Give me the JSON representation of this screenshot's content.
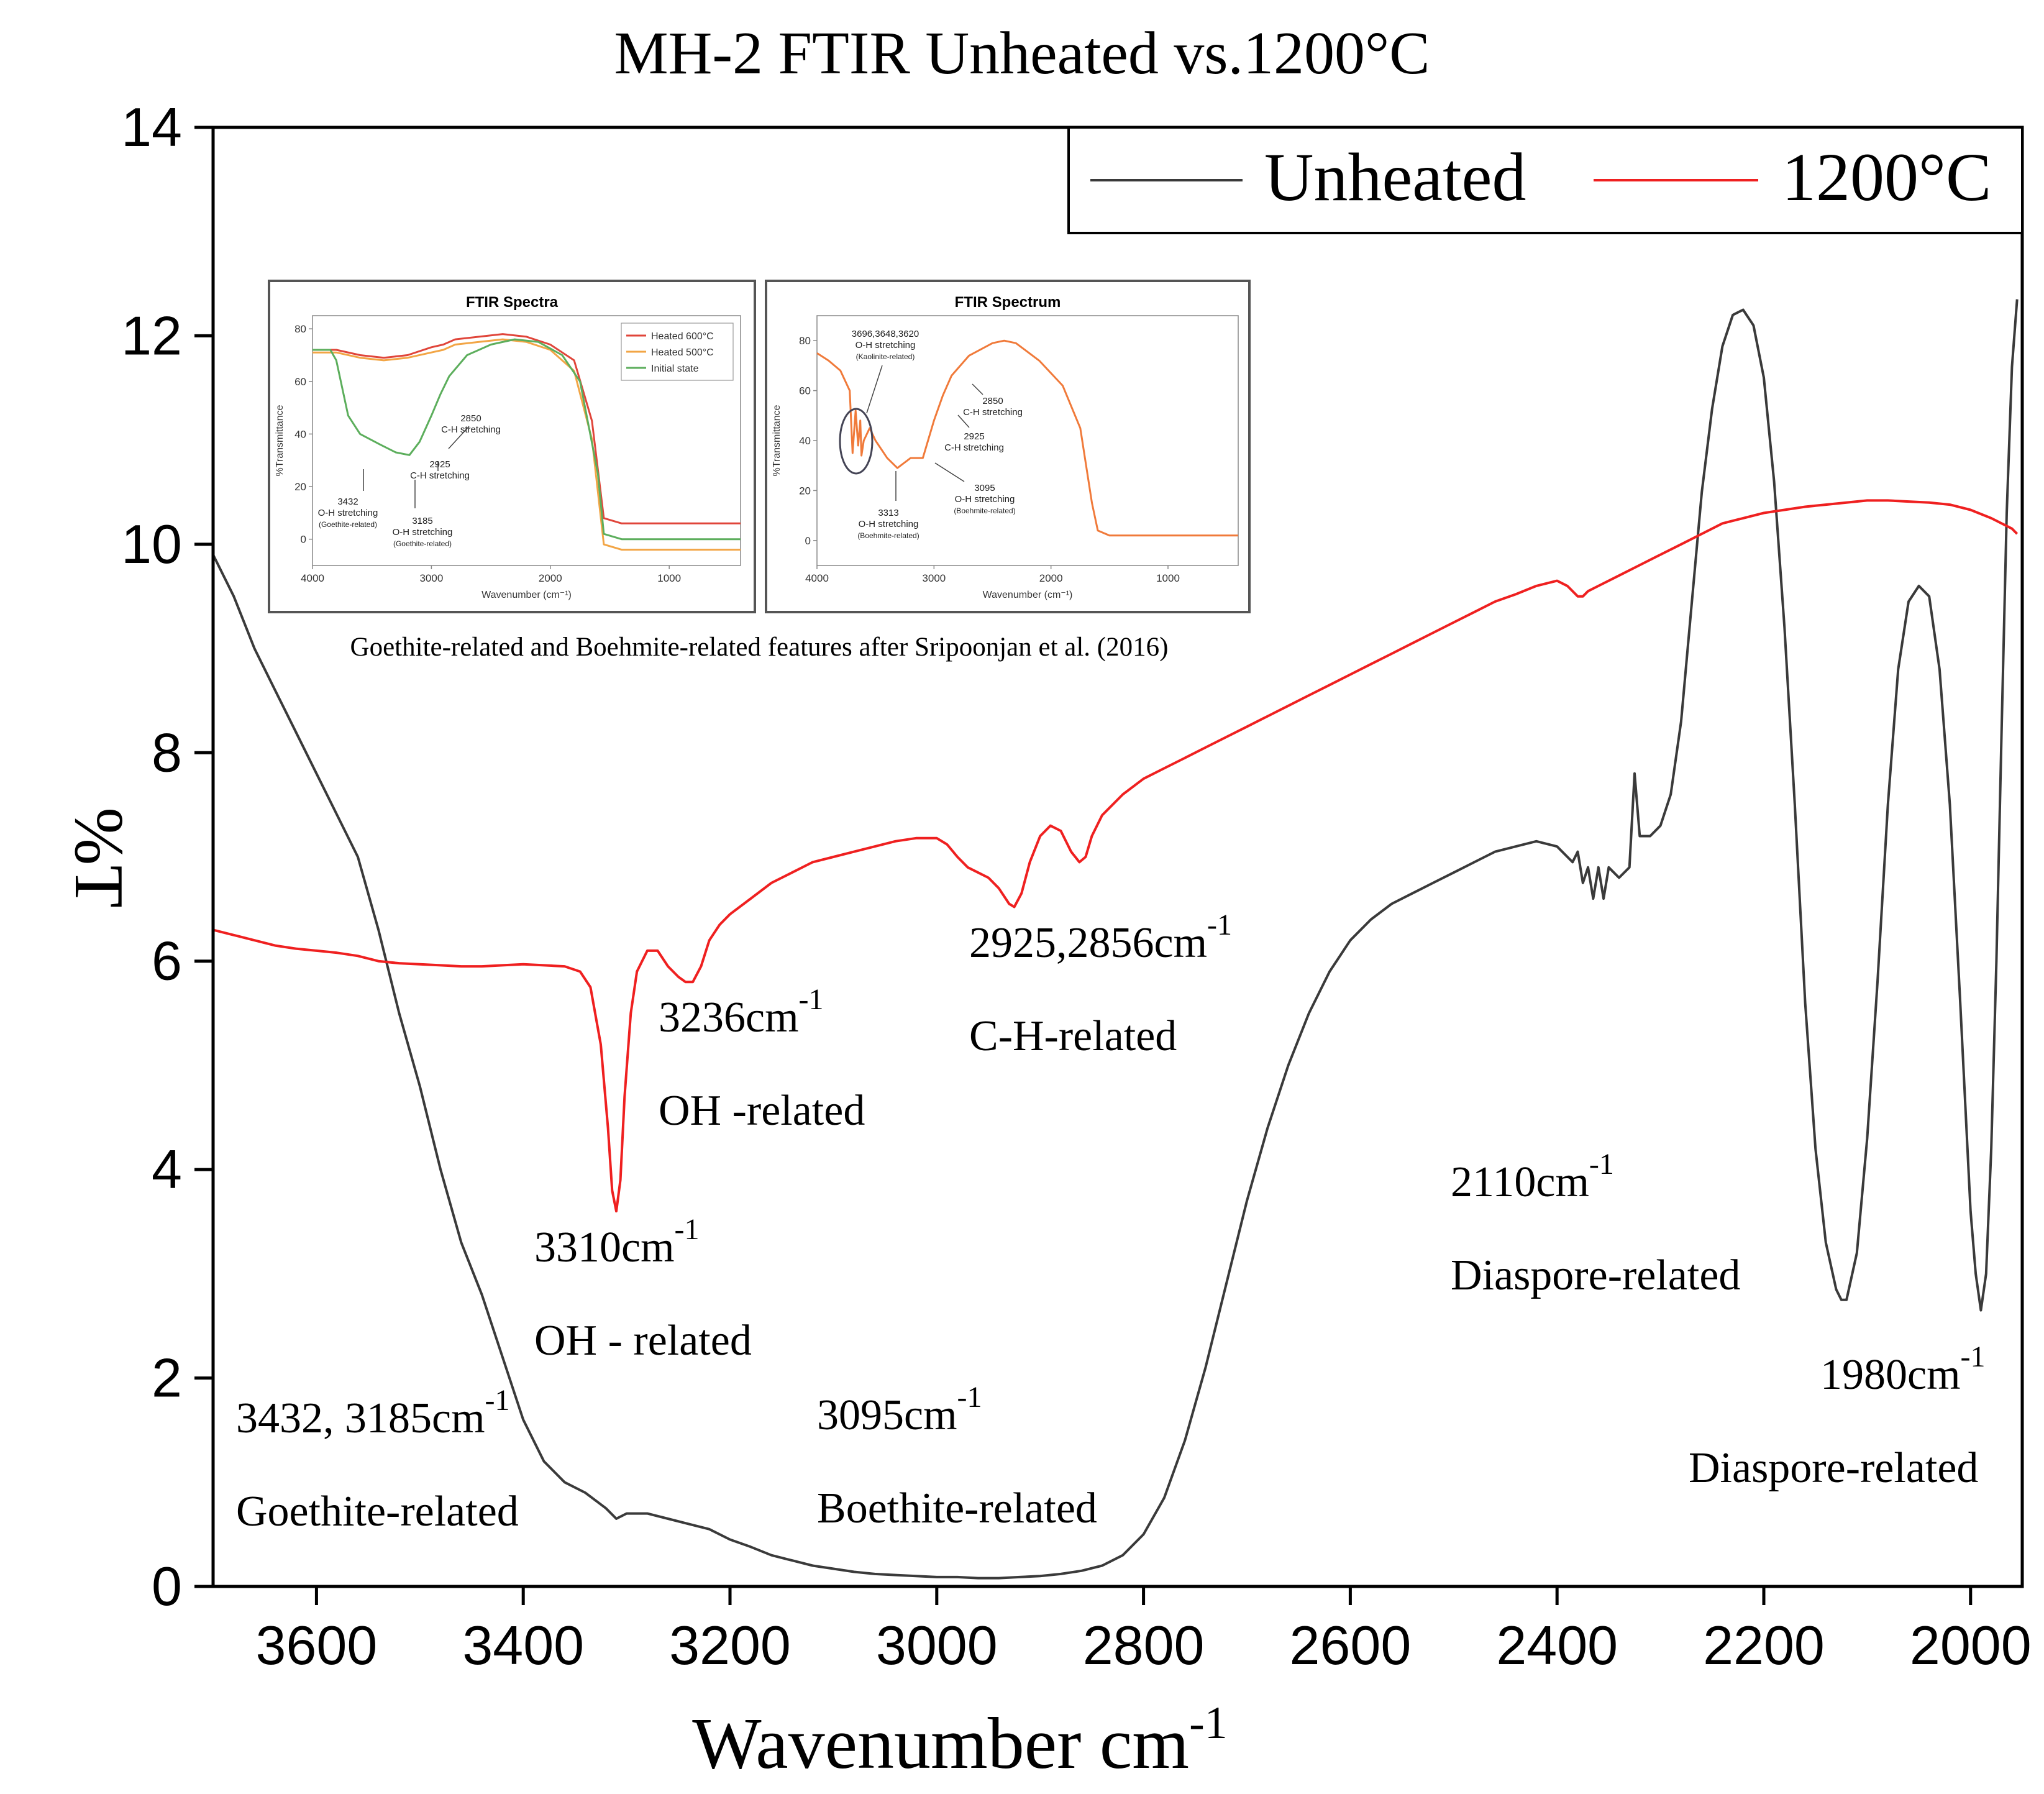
{
  "chart_data": {
    "type": "line",
    "title": "MH-2 FTIR Unheated vs.1200°C",
    "xlabel": "Wavenumber cm",
    "xlabel_superscript": "-1",
    "ylabel": "%T",
    "xlim": [
      3700,
      1950
    ],
    "ylim": [
      0,
      14
    ],
    "x_ticks": [
      3600,
      3400,
      3200,
      3000,
      2800,
      2600,
      2400,
      2200,
      2000
    ],
    "y_ticks": [
      0,
      2,
      4,
      6,
      8,
      10,
      12,
      14
    ],
    "grid": false,
    "legend_position": "top-right",
    "series": [
      {
        "name": "Unheated",
        "color": "#3a3a3a",
        "x": [
          3700,
          3680,
          3660,
          3640,
          3620,
          3600,
          3580,
          3560,
          3540,
          3520,
          3500,
          3480,
          3460,
          3440,
          3420,
          3400,
          3380,
          3360,
          3340,
          3320,
          3310,
          3300,
          3280,
          3260,
          3240,
          3220,
          3200,
          3180,
          3160,
          3140,
          3120,
          3100,
          3080,
          3060,
          3040,
          3020,
          3000,
          2980,
          2960,
          2940,
          2920,
          2900,
          2880,
          2860,
          2840,
          2820,
          2800,
          2780,
          2760,
          2740,
          2720,
          2700,
          2680,
          2660,
          2640,
          2620,
          2600,
          2580,
          2560,
          2540,
          2520,
          2500,
          2480,
          2460,
          2440,
          2420,
          2400,
          2385,
          2380,
          2375,
          2370,
          2365,
          2360,
          2355,
          2350,
          2345,
          2340,
          2330,
          2325,
          2320,
          2310,
          2300,
          2290,
          2280,
          2270,
          2260,
          2250,
          2240,
          2230,
          2220,
          2210,
          2200,
          2190,
          2180,
          2170,
          2160,
          2150,
          2140,
          2130,
          2125,
          2120,
          2110,
          2100,
          2090,
          2080,
          2070,
          2060,
          2050,
          2040,
          2030,
          2020,
          2010,
          2000,
          1995,
          1990,
          1985,
          1980,
          1975,
          1970,
          1965,
          1960,
          1955
        ],
        "y": [
          9.9,
          9.5,
          9.0,
          8.6,
          8.2,
          7.8,
          7.4,
          7.0,
          6.3,
          5.5,
          4.8,
          4.0,
          3.3,
          2.8,
          2.2,
          1.6,
          1.2,
          1.0,
          0.9,
          0.75,
          0.65,
          0.7,
          0.7,
          0.65,
          0.6,
          0.55,
          0.45,
          0.38,
          0.3,
          0.25,
          0.2,
          0.17,
          0.14,
          0.12,
          0.11,
          0.1,
          0.09,
          0.09,
          0.08,
          0.08,
          0.09,
          0.1,
          0.12,
          0.15,
          0.2,
          0.3,
          0.5,
          0.85,
          1.4,
          2.1,
          2.9,
          3.7,
          4.4,
          5.0,
          5.5,
          5.9,
          6.2,
          6.4,
          6.55,
          6.65,
          6.75,
          6.85,
          6.95,
          7.05,
          7.1,
          7.15,
          7.1,
          6.95,
          7.05,
          6.75,
          6.9,
          6.6,
          6.9,
          6.6,
          6.9,
          6.85,
          6.8,
          6.9,
          7.8,
          7.2,
          7.2,
          7.3,
          7.6,
          8.3,
          9.4,
          10.5,
          11.3,
          11.9,
          12.2,
          12.25,
          12.1,
          11.6,
          10.6,
          9.2,
          7.5,
          5.6,
          4.2,
          3.3,
          2.85,
          2.75,
          2.75,
          3.2,
          4.3,
          5.8,
          7.5,
          8.8,
          9.45,
          9.6,
          9.5,
          8.8,
          7.5,
          5.6,
          3.6,
          3.0,
          2.65,
          3.0,
          4.2,
          6.0,
          8.2,
          10.3,
          11.7,
          12.35
        ]
      },
      {
        "name": "1200°C",
        "color": "#ef2020",
        "x": [
          3700,
          3680,
          3660,
          3640,
          3620,
          3600,
          3580,
          3560,
          3540,
          3520,
          3500,
          3480,
          3460,
          3440,
          3420,
          3400,
          3380,
          3360,
          3345,
          3335,
          3325,
          3318,
          3314,
          3310,
          3306,
          3302,
          3296,
          3290,
          3280,
          3270,
          3260,
          3250,
          3243,
          3236,
          3228,
          3220,
          3210,
          3200,
          3180,
          3160,
          3140,
          3120,
          3100,
          3080,
          3060,
          3040,
          3020,
          3000,
          2990,
          2980,
          2970,
          2960,
          2950,
          2940,
          2930,
          2925,
          2918,
          2910,
          2900,
          2890,
          2880,
          2870,
          2862,
          2856,
          2850,
          2840,
          2820,
          2800,
          2780,
          2760,
          2740,
          2720,
          2700,
          2680,
          2660,
          2640,
          2620,
          2600,
          2580,
          2560,
          2540,
          2520,
          2500,
          2480,
          2460,
          2440,
          2420,
          2400,
          2390,
          2380,
          2375,
          2370,
          2360,
          2340,
          2320,
          2300,
          2280,
          2260,
          2240,
          2220,
          2200,
          2180,
          2160,
          2140,
          2120,
          2100,
          2080,
          2060,
          2040,
          2020,
          2000,
          1980,
          1960,
          1955
        ],
        "y": [
          6.3,
          6.25,
          6.2,
          6.15,
          6.12,
          6.1,
          6.08,
          6.05,
          6.0,
          5.98,
          5.97,
          5.96,
          5.95,
          5.95,
          5.96,
          5.97,
          5.96,
          5.95,
          5.9,
          5.75,
          5.2,
          4.4,
          3.8,
          3.6,
          3.9,
          4.7,
          5.5,
          5.9,
          6.1,
          6.1,
          5.95,
          5.85,
          5.8,
          5.8,
          5.95,
          6.2,
          6.35,
          6.45,
          6.6,
          6.75,
          6.85,
          6.95,
          7.0,
          7.05,
          7.1,
          7.15,
          7.18,
          7.18,
          7.12,
          7.0,
          6.9,
          6.85,
          6.8,
          6.7,
          6.55,
          6.52,
          6.65,
          6.95,
          7.2,
          7.3,
          7.25,
          7.05,
          6.95,
          7.0,
          7.2,
          7.4,
          7.6,
          7.75,
          7.85,
          7.95,
          8.05,
          8.15,
          8.25,
          8.35,
          8.45,
          8.55,
          8.65,
          8.75,
          8.85,
          8.95,
          9.05,
          9.15,
          9.25,
          9.35,
          9.45,
          9.52,
          9.6,
          9.65,
          9.6,
          9.5,
          9.5,
          9.55,
          9.6,
          9.7,
          9.8,
          9.9,
          10.0,
          10.1,
          10.2,
          10.25,
          10.3,
          10.33,
          10.36,
          10.38,
          10.4,
          10.42,
          10.42,
          10.41,
          10.4,
          10.38,
          10.33,
          10.25,
          10.15,
          10.1
        ]
      }
    ],
    "annotations": [
      {
        "line1": "3432, 3185cm",
        "sup": "-1",
        "line2": "Goethite-related"
      },
      {
        "line1": "3310cm",
        "sup": "-1",
        "line2": "OH - related"
      },
      {
        "line1": "3236cm",
        "sup": "-1",
        "line2": "OH  -related"
      },
      {
        "line1": "3095cm",
        "sup": "-1",
        "line2": "Boethite-related"
      },
      {
        "line1": "2925,2856cm",
        "sup": "-1",
        "line2": "C-H-related"
      },
      {
        "line1": "2110cm",
        "sup": "-1",
        "line2": "Diaspore-related"
      },
      {
        "line1": "1980cm",
        "sup": "-1",
        "line2": "Diaspore-related"
      }
    ],
    "inset_caption": "Goethite-related and Boehmite-related features after Sripoonjan et al. (2016)",
    "insets": [
      {
        "type": "line",
        "title": "FTIR Spectra",
        "xlabel": "Wavenumber (cm⁻¹)",
        "ylabel": "%Transmittance",
        "xlim": [
          4000,
          400
        ],
        "ylim": [
          -10,
          85
        ],
        "x_ticks": [
          4000,
          3000,
          2000,
          1000
        ],
        "y_ticks": [
          0,
          20,
          40,
          60,
          80
        ],
        "legend": [
          "Heated 600°C",
          "Heated 500°C",
          "Initial state"
        ],
        "series": [
          {
            "name": "Heated 600°C",
            "color": "#e0453a",
            "x": [
              4000,
              3800,
              3600,
              3400,
              3200,
              3000,
              2900,
              2800,
              2600,
              2400,
              2200,
              2000,
              1800,
              1650,
              1550,
              1400,
              1200,
              1000,
              800,
              600,
              400
            ],
            "y": [
              72,
              72,
              70,
              69,
              70,
              73,
              74,
              76,
              77,
              78,
              77,
              74,
              68,
              45,
              8,
              6,
              6,
              6,
              6,
              6,
              6
            ]
          },
          {
            "name": "Heated 500°C",
            "color": "#f2a545",
            "x": [
              4000,
              3800,
              3600,
              3400,
              3200,
              3000,
              2900,
              2800,
              2600,
              2400,
              2200,
              2000,
              1800,
              1650,
              1550,
              1400,
              1200,
              1000,
              800,
              600,
              400
            ],
            "y": [
              71,
              71,
              69,
              68,
              69,
              71,
              72,
              74,
              75,
              76,
              75,
              72,
              64,
              38,
              -2,
              -4,
              -4,
              -4,
              -4,
              -4,
              -4
            ]
          },
          {
            "name": "Initial state",
            "color": "#5cae5c",
            "x": [
              4000,
              3850,
              3800,
              3700,
              3600,
              3432,
              3300,
              3185,
              3100,
              3000,
              2925,
              2850,
              2700,
              2500,
              2300,
              2100,
              1900,
              1750,
              1600,
              1550,
              1400,
              1200,
              1000,
              800,
              600,
              400
            ],
            "y": [
              72,
              72,
              68,
              47,
              40,
              36,
              33,
              32,
              37,
              47,
              55,
              62,
              70,
              74,
              76,
              75,
              70,
              60,
              25,
              2,
              0,
              0,
              0,
              0,
              0,
              0
            ]
          }
        ],
        "annotations": [
          {
            "lines": [
              "2850",
              "C-H stretching"
            ]
          },
          {
            "lines": [
              "2925",
              "C-H stretching"
            ]
          },
          {
            "lines": [
              "3432",
              "O-H stretching",
              "(Goethite-related)"
            ]
          },
          {
            "lines": [
              "3185",
              "O-H stretching",
              "(Goethite-related)"
            ]
          }
        ]
      },
      {
        "type": "line",
        "title": "FTIR Spectrum",
        "xlabel": "Wavenumber (cm⁻¹)",
        "ylabel": "%Transmittance",
        "xlim": [
          4000,
          400
        ],
        "ylim": [
          -10,
          90
        ],
        "x_ticks": [
          4000,
          3000,
          2000,
          1000
        ],
        "y_ticks": [
          0,
          20,
          40,
          60,
          80
        ],
        "series": [
          {
            "name": "Spectrum",
            "color": "#f07a3a",
            "x": [
              4000,
              3900,
              3800,
              3720,
              3696,
              3670,
              3648,
              3630,
              3620,
              3600,
              3550,
              3500,
              3400,
              3313,
              3200,
              3095,
              3000,
              2925,
              2850,
              2700,
              2500,
              2400,
              2300,
              2100,
              1900,
              1750,
              1650,
              1600,
              1500,
              1300,
              1000,
              700,
              400
            ],
            "y": [
              75,
              72,
              68,
              60,
              35,
              52,
              38,
              48,
              34,
              40,
              45,
              40,
              33,
              29,
              33,
              33,
              48,
              58,
              66,
              74,
              79,
              80,
              79,
              72,
              62,
              45,
              15,
              4,
              2,
              2,
              2,
              2,
              2
            ]
          }
        ],
        "annotations": [
          {
            "lines": [
              "3696,3648,3620",
              "O-H stretching",
              "(Kaolinite-related)"
            ]
          },
          {
            "lines": [
              "2850",
              "C-H stretching"
            ]
          },
          {
            "lines": [
              "2925",
              "C-H stretching"
            ]
          },
          {
            "lines": [
              "3313",
              "O-H stretching",
              "(Boehmite-related)"
            ]
          },
          {
            "lines": [
              "3095",
              "O-H stretching",
              "(Boehmite-related)"
            ]
          }
        ]
      }
    ]
  }
}
